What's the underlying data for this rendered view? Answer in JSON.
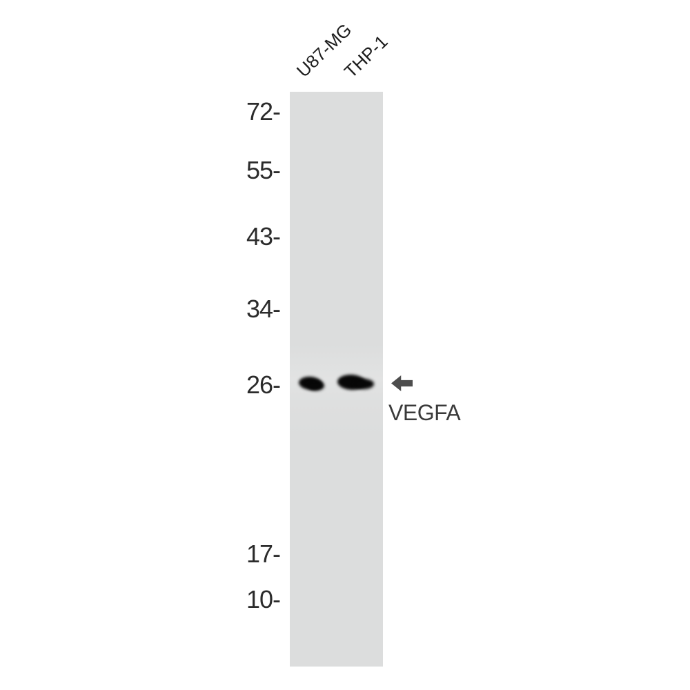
{
  "figure_type": "western-blot",
  "lanes": [
    {
      "label": "U87-MG"
    },
    {
      "label": "THP-1"
    }
  ],
  "markers": [
    {
      "kda": "72",
      "label": "72-"
    },
    {
      "kda": "55",
      "label": "55-"
    },
    {
      "kda": "43",
      "label": "43-"
    },
    {
      "kda": "34",
      "label": "34-"
    },
    {
      "kda": "26",
      "label": "26-"
    },
    {
      "kda": "17",
      "label": "17-"
    },
    {
      "kda": "10",
      "label": "10-"
    }
  ],
  "bands": [
    {
      "lane": "U87-MG",
      "approx_kda": "26",
      "intensity": "strong"
    },
    {
      "lane": "THP-1",
      "approx_kda": "26",
      "intensity": "strong"
    }
  ],
  "annotation": {
    "arrow_icon": "left-arrow",
    "target_label": "VEGFA",
    "band_kda": "26"
  },
  "colors": {
    "background": "#ffffff",
    "strip": "#dcdddd",
    "band": "#070707",
    "arrow": "#4d4d4d",
    "marker_text": "#2b2b2b",
    "lane_text": "#1d1d1d",
    "target_text": "#3a3a3a"
  }
}
